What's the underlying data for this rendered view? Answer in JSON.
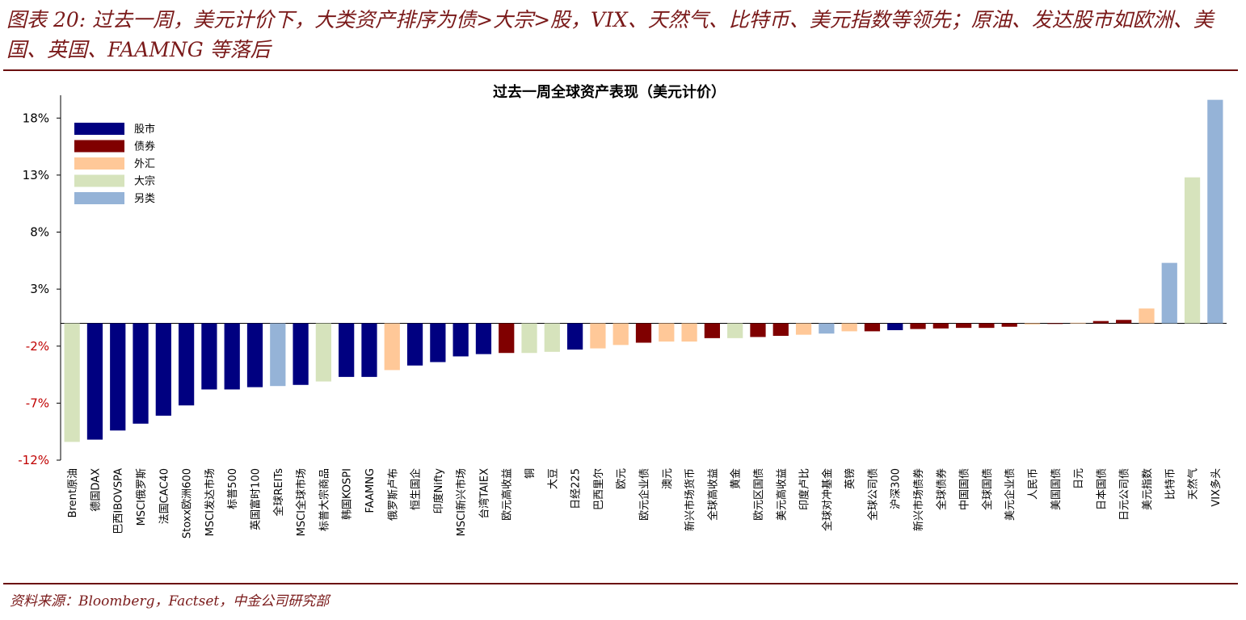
{
  "figure": {
    "title": "图表 20: 过去一周，美元计价下，大类资产排序为债>大宗>股，VIX、天然气、比特币、美元指数等领先；原油、发达股市如欧洲、美国、英国、FAAMNG 等落后",
    "source": "资料来源：Bloomberg，Factset，中金公司研究部"
  },
  "colors": {
    "股市": "#000080",
    "债券": "#800000",
    "外汇": "#FFC898",
    "大宗": "#D6E3BC",
    "另类": "#95B3D7",
    "negative_tick": "#C00000",
    "positive_tick": "#000000"
  },
  "chart_data": {
    "type": "bar",
    "title": "过去一周全球资产表现（美元计价）",
    "xlabel": "",
    "ylabel": "",
    "ylim": [
      -12,
      20
    ],
    "yticks": [
      -12,
      -7,
      -2,
      3,
      8,
      13,
      18
    ],
    "ytick_labels": [
      "-12%",
      "-7%",
      "-2%",
      "3%",
      "8%",
      "13%",
      "18%"
    ],
    "legend": [
      "股市",
      "债券",
      "外汇",
      "大宗",
      "另类"
    ],
    "legend_position": "top-left",
    "categories": [
      "Brent原油",
      "德国DAX",
      "巴西IBOVSPA",
      "MSCI俄罗斯",
      "法国CAC40",
      "Stoxx欧洲600",
      "MSCI发达市场",
      "标普500",
      "英国富时100",
      "全球REITs",
      "MSCI全球市场",
      "标普大宗商品",
      "韩国KOSPI",
      "FAAMNG",
      "俄罗斯卢布",
      "恒生国企",
      "印度Nifty",
      "MSCI新兴市场",
      "台湾TAIEX",
      "欧元高收益",
      "铜",
      "大豆",
      "日经225",
      "巴西里尔",
      "欧元",
      "欧元企业债",
      "澳元",
      "新兴市场货币",
      "全球高收益",
      "黄金",
      "欧元区国债",
      "美元高收益",
      "印度卢比",
      "全球对冲基金",
      "英镑",
      "全球公司债",
      "沪深300",
      "新兴市场债券",
      "全球债券",
      "中国国债",
      "全球国债",
      "美元企业债",
      "人民币",
      "美国国债",
      "日元",
      "日本国债",
      "日元公司债",
      "美元指数",
      "比特币",
      "天然气",
      "VIX多头"
    ],
    "values": [
      -10.4,
      -10.2,
      -9.4,
      -8.8,
      -8.1,
      -7.2,
      -5.8,
      -5.8,
      -5.6,
      -5.5,
      -5.4,
      -5.1,
      -4.7,
      -4.7,
      -4.1,
      -3.7,
      -3.4,
      -2.9,
      -2.7,
      -2.6,
      -2.6,
      -2.5,
      -2.3,
      -2.2,
      -1.9,
      -1.7,
      -1.6,
      -1.6,
      -1.3,
      -1.3,
      -1.2,
      -1.1,
      -1.0,
      -0.9,
      -0.7,
      -0.7,
      -0.6,
      -0.5,
      -0.45,
      -0.4,
      -0.4,
      -0.3,
      -0.1,
      -0.05,
      0.05,
      0.2,
      0.3,
      1.3,
      5.3,
      12.8,
      19.6
    ],
    "asset_class": [
      "大宗",
      "股市",
      "股市",
      "股市",
      "股市",
      "股市",
      "股市",
      "股市",
      "股市",
      "另类",
      "股市",
      "大宗",
      "股市",
      "股市",
      "外汇",
      "股市",
      "股市",
      "股市",
      "股市",
      "债券",
      "大宗",
      "大宗",
      "股市",
      "外汇",
      "外汇",
      "债券",
      "外汇",
      "外汇",
      "债券",
      "大宗",
      "债券",
      "债券",
      "外汇",
      "另类",
      "外汇",
      "债券",
      "股市",
      "债券",
      "债券",
      "债券",
      "债券",
      "债券",
      "外汇",
      "债券",
      "外汇",
      "债券",
      "债券",
      "外汇",
      "另类",
      "大宗",
      "另类"
    ]
  }
}
